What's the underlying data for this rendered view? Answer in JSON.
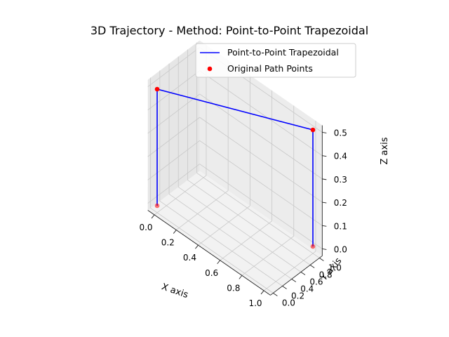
{
  "chart_data": {
    "type": "line3d",
    "title": "3D Trajectory - Method: Point-to-Point Trapezoidal",
    "xlabel": "X axis",
    "ylabel": "Y axis",
    "zlabel": "Z axis",
    "xlim": [
      0,
      1
    ],
    "ylim": [
      0,
      1
    ],
    "zlim": [
      0,
      0.5
    ],
    "x_ticks": [
      "0.0",
      "0.2",
      "0.4",
      "0.6",
      "0.8",
      "1.0"
    ],
    "y_ticks": [
      "0.0",
      "0.2",
      "0.4",
      "0.6",
      "0.8",
      "1.0"
    ],
    "z_ticks": [
      "0.0",
      "0.1",
      "0.2",
      "0.3",
      "0.4",
      "0.5"
    ],
    "grid": true,
    "legend_position": "top-right",
    "series": [
      {
        "name": "Point-to-Point Trapezoidal",
        "kind": "line",
        "color": "#0000ff",
        "points": [
          [
            0,
            0,
            0
          ],
          [
            0,
            0,
            0.5
          ],
          [
            1,
            1,
            0.5
          ],
          [
            1,
            1,
            0
          ]
        ]
      },
      {
        "name": "Original Path Points",
        "kind": "scatter",
        "color": "#ff0000",
        "points": [
          [
            0,
            0,
            0
          ],
          [
            0,
            0,
            0.5
          ],
          [
            1,
            1,
            0.5
          ],
          [
            1,
            1,
            0
          ]
        ]
      }
    ]
  }
}
